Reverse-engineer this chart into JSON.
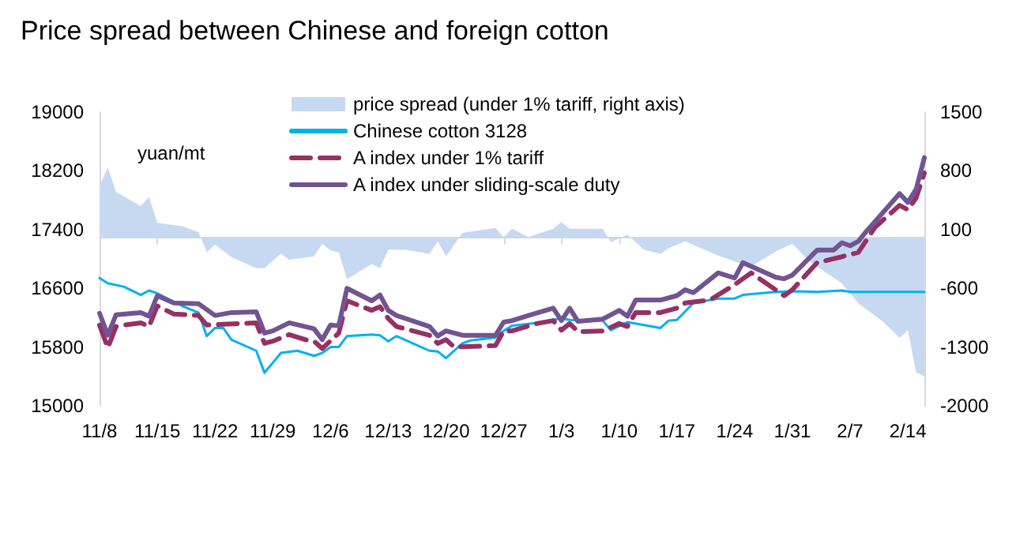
{
  "chart_data": {
    "type": "line",
    "title": "Price spread between Chinese and foreign cotton",
    "ylabel": "yuan/mt",
    "categories": [
      "11/8",
      null,
      null,
      null,
      null,
      null,
      null,
      "11/15",
      null,
      null,
      null,
      null,
      null,
      null,
      "11/22",
      null,
      null,
      null,
      null,
      null,
      null,
      "11/29",
      null,
      null,
      null,
      null,
      null,
      null,
      "12/6",
      null,
      null,
      null,
      null,
      null,
      null,
      "12/13",
      null,
      null,
      null,
      null,
      null,
      null,
      "12/20",
      null,
      null,
      null,
      null,
      null,
      null,
      "12/27",
      null,
      null,
      null,
      null,
      null,
      null,
      "1/3",
      null,
      null,
      null,
      null,
      null,
      null,
      "1/10",
      null,
      null,
      null,
      null,
      null,
      null,
      "1/17",
      null,
      null,
      null,
      null,
      null,
      null,
      "1/24",
      null,
      null,
      null,
      null,
      null,
      null,
      "1/31",
      null,
      null,
      null,
      null,
      null,
      null,
      "2/7",
      null,
      null,
      null,
      null,
      null,
      null,
      "2/14",
      null,
      null
    ],
    "series": [
      {
        "name": "price spread (under 1% tariff, right axis)",
        "type": "area",
        "axis": "y2",
        "color": "#c6d9f1",
        "values": [
          620,
          840,
          550,
          null,
          null,
          380,
          490,
          180,
          null,
          null,
          140,
          null,
          70,
          -170,
          -80,
          null,
          -230,
          null,
          null,
          -360,
          -360,
          null,
          -190,
          -260,
          null,
          null,
          -220,
          -70,
          -150,
          -170,
          -490,
          null,
          null,
          -310,
          -360,
          -140,
          null,
          -140,
          null,
          null,
          -190,
          -40,
          -220,
          null,
          60,
          null,
          null,
          null,
          120,
          10,
          110,
          60,
          10,
          null,
          null,
          110,
          190,
          110,
          null,
          null,
          null,
          110,
          -50,
          null,
          40,
          null,
          -140,
          null,
          -190,
          -120,
          null,
          -40,
          null,
          null,
          null,
          -210,
          null,
          null,
          -310,
          -340,
          null,
          null,
          -160,
          null,
          -70,
          null,
          -270,
          null,
          -410,
          null,
          -540,
          null,
          -780,
          null,
          null,
          -1000,
          null,
          -1190,
          -1100,
          -1600,
          -1650
        ]
      },
      {
        "name": "Chinese cotton 3128",
        "color": "#00b0f0",
        "line_style": "solid",
        "values": [
          16740,
          16670,
          null,
          16620,
          null,
          16510,
          16570,
          16530,
          null,
          null,
          16360,
          null,
          16270,
          15950,
          16060,
          16060,
          15900,
          null,
          null,
          15750,
          15450,
          null,
          15720,
          null,
          15750,
          null,
          15680,
          15720,
          15800,
          15800,
          15950,
          null,
          null,
          15970,
          15960,
          15880,
          15950,
          15900,
          null,
          null,
          15750,
          15740,
          15650,
          null,
          15850,
          15890,
          null,
          null,
          15930,
          16020,
          16090,
          null,
          null,
          16130,
          null,
          null,
          16190,
          16170,
          null,
          null,
          null,
          16160,
          16030,
          null,
          16140,
          null,
          16100,
          null,
          16060,
          16160,
          16170,
          null,
          16400,
          null,
          null,
          16460,
          null,
          16460,
          16510,
          null,
          null,
          null,
          16550,
          null,
          16560,
          null,
          null,
          16550,
          null,
          null,
          16570,
          16550,
          null,
          null,
          null,
          null,
          null,
          null,
          null,
          null,
          16550
        ]
      },
      {
        "name": "A index under 1% tariff",
        "color": "#953163",
        "line_style": "dashed",
        "values": [
          16100,
          15790,
          16080,
          16100,
          null,
          16130,
          16080,
          16360,
          null,
          16250,
          null,
          null,
          16230,
          16100,
          null,
          null,
          null,
          null,
          null,
          16130,
          15850,
          15880,
          null,
          15970,
          null,
          15900,
          15880,
          15780,
          null,
          15990,
          16430,
          null,
          null,
          16300,
          16350,
          16190,
          16080,
          null,
          null,
          null,
          15960,
          15850,
          15900,
          15800,
          null,
          null,
          null,
          null,
          15820,
          16020,
          16020,
          null,
          null,
          16120,
          null,
          16160,
          16030,
          16120,
          16010,
          null,
          null,
          16020,
          null,
          16120,
          16080,
          16270,
          null,
          null,
          16270,
          null,
          16330,
          16400,
          null,
          null,
          16440,
          null,
          null,
          16650,
          null,
          16810,
          null,
          null,
          null,
          16500,
          16580,
          null,
          null,
          16950,
          null,
          null,
          17030,
          null,
          17090,
          null,
          17430,
          null,
          null,
          17730,
          17670,
          17830,
          18170
        ]
      },
      {
        "name": "A index under sliding-scale duty",
        "color": "#725492",
        "line_style": "solid",
        "values": [
          16260,
          15960,
          16240,
          null,
          null,
          16270,
          16220,
          16500,
          null,
          16400,
          null,
          null,
          16390,
          null,
          16230,
          null,
          16270,
          null,
          null,
          16280,
          15990,
          16020,
          null,
          16130,
          null,
          null,
          16050,
          15900,
          16100,
          16090,
          16600,
          null,
          null,
          16430,
          16510,
          16300,
          16230,
          null,
          null,
          null,
          16080,
          15950,
          16020,
          null,
          15960,
          null,
          null,
          null,
          15960,
          16140,
          16160,
          null,
          16230,
          null,
          null,
          16330,
          16160,
          16330,
          16150,
          null,
          null,
          16180,
          null,
          16300,
          16220,
          16440,
          null,
          null,
          16440,
          null,
          16500,
          16580,
          16540,
          null,
          null,
          16810,
          null,
          16740,
          16950,
          null,
          null,
          null,
          16750,
          16730,
          16780,
          null,
          null,
          17120,
          null,
          17120,
          17220,
          17180,
          17240,
          17380,
          null,
          null,
          null,
          17890,
          17770,
          17950,
          18380
        ]
      }
    ],
    "ylim": [
      15000,
      19000
    ],
    "yticks": [
      15000,
      15800,
      16600,
      17400,
      18200,
      19000
    ],
    "y2lim": [
      -2000,
      1500
    ],
    "y2ticks": [
      -2000,
      -1300,
      -600,
      100,
      800,
      1500
    ],
    "marker": "none",
    "grid": false,
    "legend": "top"
  }
}
